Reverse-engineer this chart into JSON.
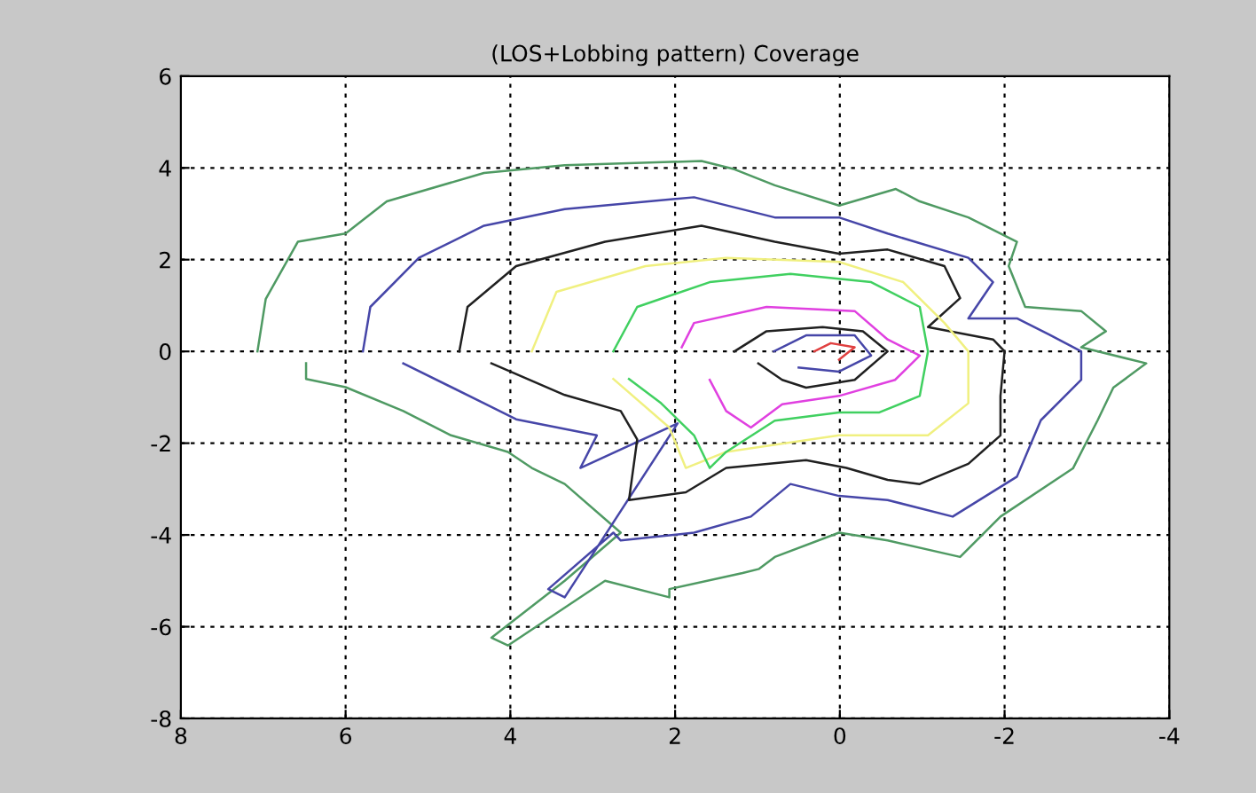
{
  "chart_data": {
    "type": "line",
    "title": "(LOS+Lobbing pattern) Coverage",
    "xlim": [
      8,
      -4
    ],
    "ylim": [
      -8,
      6
    ],
    "xticks": [
      8,
      6,
      4,
      2,
      0,
      -2,
      -4
    ],
    "yticks": [
      -8,
      -6,
      -4,
      -2,
      0,
      2,
      4,
      6
    ],
    "grid": true,
    "marker": "none",
    "line_style": "solid",
    "series": [
      {
        "color": "#4f9a63",
        "x": [
          7.07,
          6.97,
          6.58,
          6.0,
          5.5,
          4.32,
          3.34,
          1.68,
          1.28,
          0.79,
          0.01,
          -0.68,
          -0.97,
          -1.56,
          -2.15,
          -2.05,
          -2.25,
          -2.93,
          -3.23,
          -2.93,
          -3.72,
          -3.32,
          -3.13,
          -2.83,
          -1.95,
          -1.46,
          -0.58,
          0.01,
          0.79,
          0.98,
          1.18,
          2.07,
          2.07,
          2.85,
          4.03,
          4.23,
          3.34,
          2.66,
          3.34,
          3.74,
          4.03,
          4.72,
          5.3,
          6.0,
          6.48,
          6.48
        ],
        "values": [
          0,
          1.14,
          2.39,
          2.57,
          3.27,
          3.89,
          4.06,
          4.15,
          3.97,
          3.62,
          3.18,
          3.54,
          3.27,
          2.92,
          2.39,
          1.86,
          0.97,
          0.88,
          0.44,
          0.09,
          -0.26,
          -0.79,
          -1.5,
          -2.55,
          -3.6,
          -4.48,
          -4.12,
          -3.95,
          -4.48,
          -4.74,
          -4.83,
          -5.18,
          -5.36,
          -5.0,
          -6.41,
          -6.24,
          -5.0,
          -3.95,
          -2.89,
          -2.54,
          -2.19,
          -1.83,
          -1.3,
          -0.78,
          -0.6,
          -0.26
        ]
      },
      {
        "color": "#4646a8",
        "x": [
          5.79,
          5.7,
          5.11,
          4.32,
          3.34,
          1.77,
          0.79,
          0.01,
          -0.58,
          -1.56,
          -1.86,
          -1.56,
          -2.15,
          -2.54,
          -2.93,
          -2.93,
          -2.44,
          -2.15,
          -1.37,
          -0.58,
          0.01,
          0.6,
          1.08,
          1.77,
          2.66,
          2.75,
          3.54,
          3.34,
          1.97,
          3.15,
          2.95,
          3.93,
          4.32,
          5.3
        ],
        "values": [
          0,
          0.97,
          2.04,
          2.74,
          3.1,
          3.36,
          2.92,
          2.92,
          2.57,
          2.04,
          1.51,
          0.72,
          0.72,
          0.37,
          0,
          -0.62,
          -1.5,
          -2.73,
          -3.6,
          -3.24,
          -3.15,
          -2.89,
          -3.6,
          -3.95,
          -4.12,
          -3.95,
          -5.18,
          -5.36,
          -1.57,
          -2.54,
          -1.83,
          -1.48,
          -1.13,
          -0.26
        ]
      },
      {
        "color": "#202020",
        "x": [
          4.62,
          4.52,
          3.93,
          2.85,
          1.68,
          0.79,
          0.01,
          -0.58,
          -1.27,
          -1.46,
          -1.07,
          -1.86,
          -2.0,
          -1.95,
          -1.95,
          -1.56,
          -0.97,
          -0.58,
          -0.08,
          0.41,
          1.38,
          1.87,
          2.56,
          2.46,
          2.66,
          3.34,
          4.23
        ],
        "values": [
          0,
          0.97,
          1.86,
          2.39,
          2.74,
          2.39,
          2.13,
          2.22,
          1.86,
          1.16,
          0.53,
          0.26,
          0,
          -0.97,
          -1.83,
          -2.45,
          -2.89,
          -2.8,
          -2.54,
          -2.37,
          -2.54,
          -3.07,
          -3.24,
          -1.92,
          -1.3,
          -0.95,
          -0.26
        ]
      },
      {
        "color": "#f0f080",
        "x": [
          3.74,
          3.44,
          2.36,
          1.38,
          0.01,
          -0.77,
          -1.27,
          -1.56,
          -1.56,
          -1.07,
          0.01,
          1.38,
          1.87,
          2.07,
          2.75
        ],
        "values": [
          0,
          1.3,
          1.86,
          2.04,
          1.95,
          1.51,
          0.62,
          0,
          -1.13,
          -1.83,
          -1.83,
          -2.19,
          -2.54,
          -1.66,
          -0.6
        ]
      },
      {
        "color": "#40d060",
        "x": [
          2.75,
          2.46,
          1.58,
          0.6,
          -0.38,
          -0.97,
          -1.07,
          -0.97,
          -0.48,
          0.01,
          0.79,
          1.38,
          1.58,
          1.77,
          2.17,
          2.56
        ],
        "values": [
          0,
          0.97,
          1.51,
          1.69,
          1.51,
          0.97,
          0,
          -0.97,
          -1.33,
          -1.33,
          -1.51,
          -2.19,
          -2.54,
          -1.83,
          -1.13,
          -0.6
        ]
      },
      {
        "color": "#e040e0",
        "x": [
          1.92,
          1.77,
          0.89,
          -0.18,
          -0.58,
          -0.97,
          -0.67,
          0.01,
          0.7,
          1.08,
          1.38,
          1.58
        ],
        "values": [
          0.09,
          0.62,
          0.97,
          0.88,
          0.26,
          -0.09,
          -0.62,
          -0.97,
          -1.15,
          -1.66,
          -1.3,
          -0.62
        ]
      },
      {
        "color": "#202020",
        "x": [
          1.28,
          0.89,
          0.21,
          -0.28,
          -0.58,
          -0.18,
          0.41,
          0.7,
          0.99
        ],
        "values": [
          0,
          0.44,
          0.53,
          0.44,
          0,
          -0.62,
          -0.79,
          -0.62,
          -0.26
        ]
      },
      {
        "color": "#4646a8",
        "x": [
          0.8,
          0.41,
          -0.18,
          -0.38,
          0.01,
          0.5
        ],
        "values": [
          0,
          0.35,
          0.35,
          -0.09,
          -0.44,
          -0.35
        ]
      },
      {
        "color": "#e04040",
        "x": [
          0.31,
          0.11,
          -0.18,
          0.01
        ],
        "values": [
          0,
          0.18,
          0.09,
          -0.18
        ]
      }
    ]
  }
}
